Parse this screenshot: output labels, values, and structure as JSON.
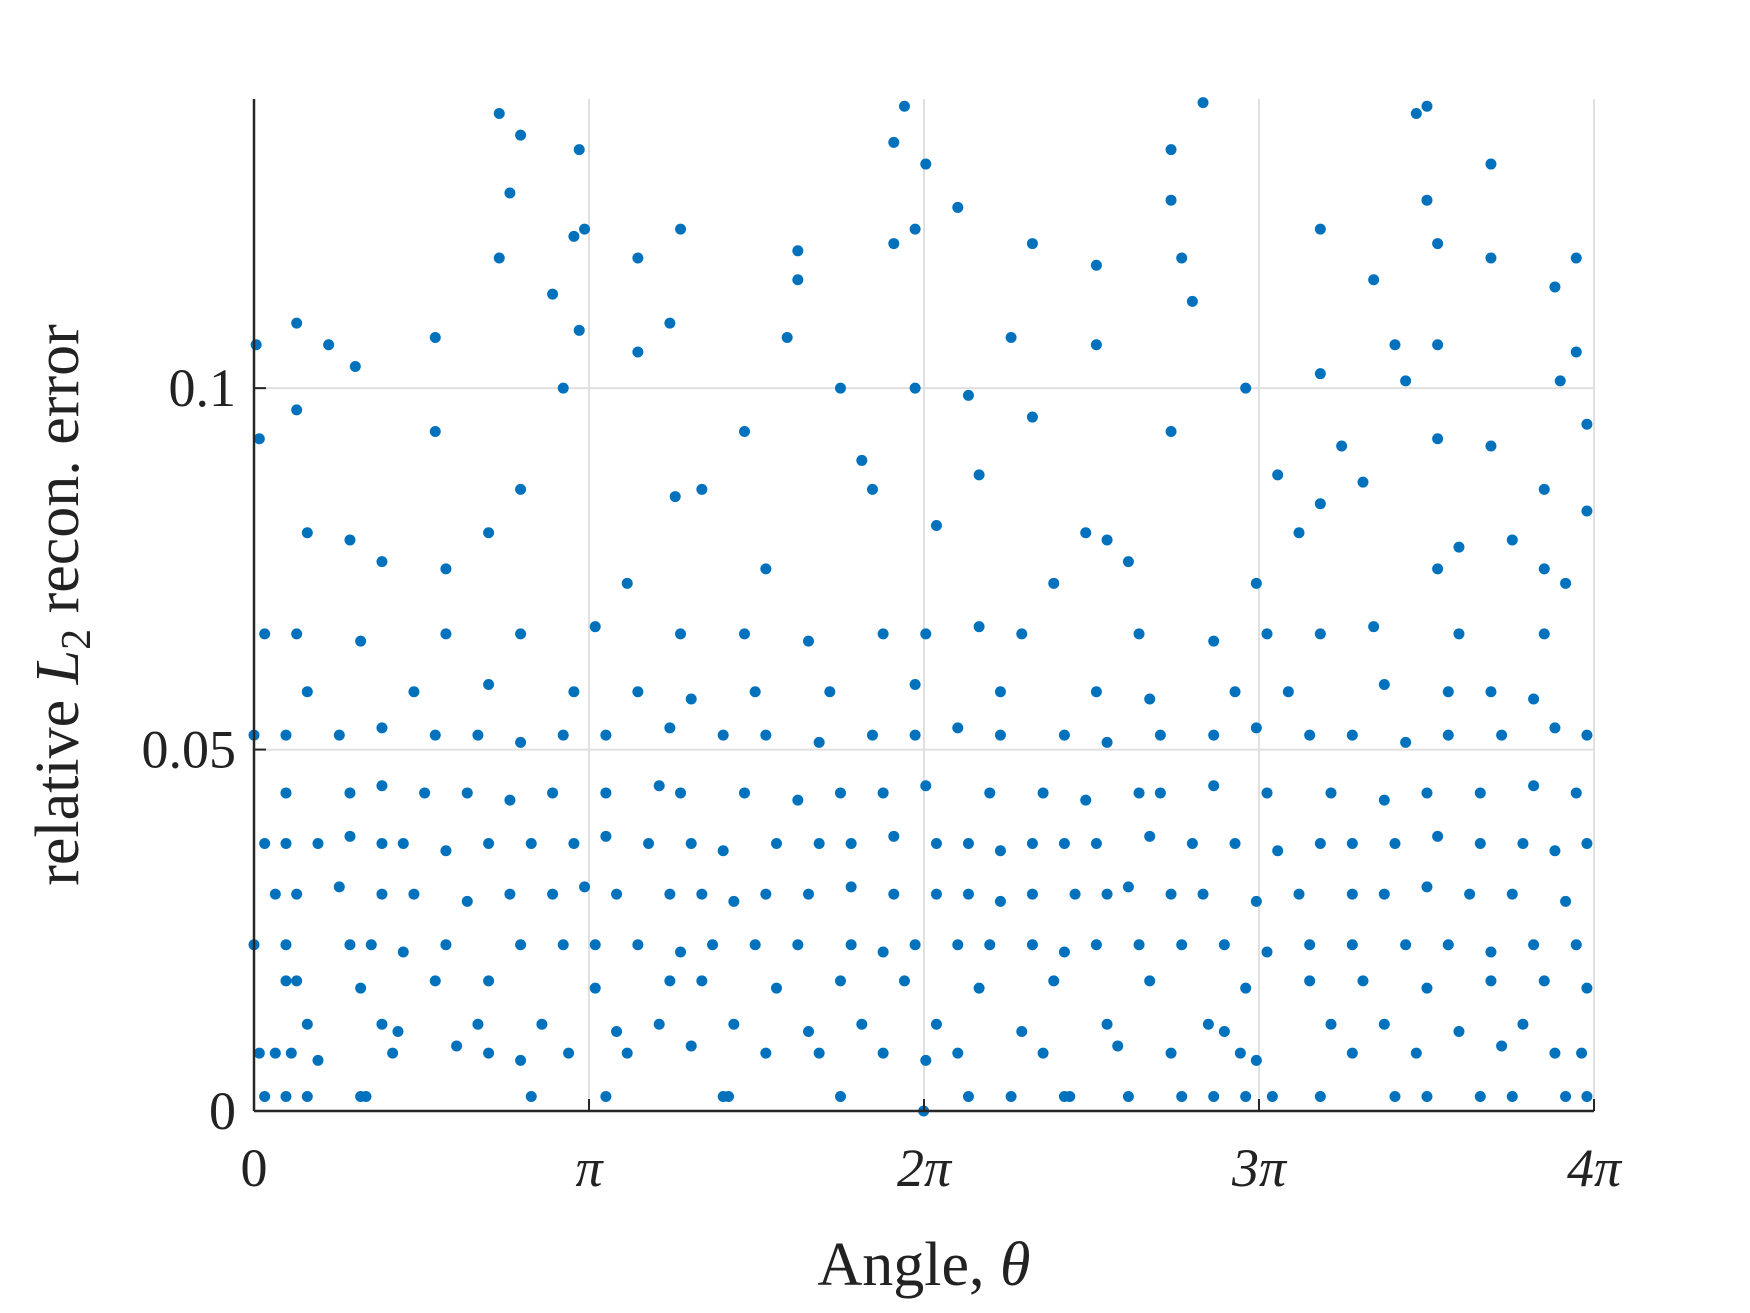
{
  "chart_data": {
    "type": "scatter",
    "xlabel": [
      "Angle, ",
      "θ"
    ],
    "ylabel": [
      "relative ",
      "L",
      "2",
      " recon. error"
    ],
    "xlim": [
      0,
      12.5664
    ],
    "ylim": [
      0,
      0.14
    ],
    "xticks": [
      0,
      {
        "value": 3.1416,
        "label": "π"
      },
      {
        "value": 6.2832,
        "label": "2π"
      },
      {
        "value": 9.4248,
        "label": "3π"
      },
      {
        "value": 12.5664,
        "label": "4π"
      }
    ],
    "yticks": [
      0,
      0.05,
      0.1
    ],
    "grid": true,
    "color": "#0072bd",
    "points": [
      [
        0.1,
        0.002
      ],
      [
        0.3,
        0.002
      ],
      [
        0.5,
        0.002
      ],
      [
        1.0,
        0.002
      ],
      [
        1.05,
        0.002
      ],
      [
        2.6,
        0.002
      ],
      [
        3.3,
        0.002
      ],
      [
        4.4,
        0.002
      ],
      [
        4.45,
        0.002
      ],
      [
        5.5,
        0.002
      ],
      [
        6.7,
        0.002
      ],
      [
        7.1,
        0.002
      ],
      [
        7.6,
        0.002
      ],
      [
        7.65,
        0.002
      ],
      [
        8.2,
        0.002
      ],
      [
        8.7,
        0.002
      ],
      [
        9.0,
        0.002
      ],
      [
        9.3,
        0.002
      ],
      [
        9.55,
        0.002
      ],
      [
        10.0,
        0.002
      ],
      [
        10.7,
        0.002
      ],
      [
        11.0,
        0.002
      ],
      [
        11.5,
        0.002
      ],
      [
        11.8,
        0.002
      ],
      [
        12.3,
        0.002
      ],
      [
        12.5,
        0.002
      ],
      [
        6.28,
        0.0
      ],
      [
        0.05,
        0.008
      ],
      [
        0.2,
        0.008
      ],
      [
        0.35,
        0.008
      ],
      [
        0.6,
        0.007
      ],
      [
        1.3,
        0.008
      ],
      [
        1.9,
        0.009
      ],
      [
        2.2,
        0.008
      ],
      [
        2.5,
        0.007
      ],
      [
        2.95,
        0.008
      ],
      [
        3.5,
        0.008
      ],
      [
        4.1,
        0.009
      ],
      [
        4.8,
        0.008
      ],
      [
        5.3,
        0.008
      ],
      [
        5.9,
        0.008
      ],
      [
        6.3,
        0.007
      ],
      [
        6.6,
        0.008
      ],
      [
        7.4,
        0.008
      ],
      [
        8.1,
        0.009
      ],
      [
        8.6,
        0.008
      ],
      [
        9.25,
        0.008
      ],
      [
        9.4,
        0.007
      ],
      [
        10.3,
        0.008
      ],
      [
        10.9,
        0.008
      ],
      [
        11.7,
        0.009
      ],
      [
        12.2,
        0.008
      ],
      [
        12.45,
        0.008
      ],
      [
        0.5,
        0.012
      ],
      [
        1.2,
        0.012
      ],
      [
        1.35,
        0.011
      ],
      [
        2.1,
        0.012
      ],
      [
        2.7,
        0.012
      ],
      [
        3.4,
        0.011
      ],
      [
        3.8,
        0.012
      ],
      [
        4.5,
        0.012
      ],
      [
        5.2,
        0.011
      ],
      [
        5.7,
        0.012
      ],
      [
        6.4,
        0.012
      ],
      [
        7.2,
        0.011
      ],
      [
        8.0,
        0.012
      ],
      [
        8.95,
        0.012
      ],
      [
        9.1,
        0.011
      ],
      [
        10.1,
        0.012
      ],
      [
        10.6,
        0.012
      ],
      [
        11.3,
        0.011
      ],
      [
        11.9,
        0.012
      ],
      [
        0.3,
        0.018
      ],
      [
        0.4,
        0.018
      ],
      [
        1.0,
        0.017
      ],
      [
        1.7,
        0.018
      ],
      [
        2.2,
        0.018
      ],
      [
        3.2,
        0.017
      ],
      [
        3.9,
        0.018
      ],
      [
        4.2,
        0.018
      ],
      [
        4.9,
        0.017
      ],
      [
        5.5,
        0.018
      ],
      [
        6.1,
        0.018
      ],
      [
        6.8,
        0.017
      ],
      [
        7.5,
        0.018
      ],
      [
        8.4,
        0.018
      ],
      [
        9.3,
        0.017
      ],
      [
        9.9,
        0.018
      ],
      [
        10.4,
        0.018
      ],
      [
        11.0,
        0.017
      ],
      [
        11.6,
        0.018
      ],
      [
        12.1,
        0.018
      ],
      [
        12.5,
        0.017
      ],
      [
        0.0,
        0.023
      ],
      [
        0.3,
        0.023
      ],
      [
        0.9,
        0.023
      ],
      [
        1.1,
        0.023
      ],
      [
        1.4,
        0.022
      ],
      [
        1.8,
        0.023
      ],
      [
        2.5,
        0.023
      ],
      [
        2.9,
        0.023
      ],
      [
        3.2,
        0.023
      ],
      [
        3.6,
        0.023
      ],
      [
        4.0,
        0.022
      ],
      [
        4.3,
        0.023
      ],
      [
        4.7,
        0.023
      ],
      [
        5.1,
        0.023
      ],
      [
        5.6,
        0.023
      ],
      [
        5.9,
        0.022
      ],
      [
        6.2,
        0.023
      ],
      [
        6.6,
        0.023
      ],
      [
        6.9,
        0.023
      ],
      [
        7.3,
        0.023
      ],
      [
        7.6,
        0.022
      ],
      [
        7.9,
        0.023
      ],
      [
        8.3,
        0.023
      ],
      [
        8.7,
        0.023
      ],
      [
        9.1,
        0.023
      ],
      [
        9.5,
        0.022
      ],
      [
        9.9,
        0.023
      ],
      [
        10.3,
        0.023
      ],
      [
        10.8,
        0.023
      ],
      [
        11.2,
        0.023
      ],
      [
        11.6,
        0.022
      ],
      [
        12.0,
        0.023
      ],
      [
        12.4,
        0.023
      ],
      [
        0.2,
        0.03
      ],
      [
        0.4,
        0.03
      ],
      [
        0.8,
        0.031
      ],
      [
        1.2,
        0.03
      ],
      [
        1.5,
        0.03
      ],
      [
        2.0,
        0.029
      ],
      [
        2.4,
        0.03
      ],
      [
        2.8,
        0.03
      ],
      [
        3.1,
        0.031
      ],
      [
        3.4,
        0.03
      ],
      [
        3.9,
        0.03
      ],
      [
        4.2,
        0.03
      ],
      [
        4.5,
        0.029
      ],
      [
        4.8,
        0.03
      ],
      [
        5.2,
        0.03
      ],
      [
        5.6,
        0.031
      ],
      [
        6.0,
        0.03
      ],
      [
        6.4,
        0.03
      ],
      [
        6.7,
        0.03
      ],
      [
        7.0,
        0.029
      ],
      [
        7.3,
        0.03
      ],
      [
        7.7,
        0.03
      ],
      [
        8.0,
        0.03
      ],
      [
        8.2,
        0.031
      ],
      [
        8.6,
        0.03
      ],
      [
        8.9,
        0.03
      ],
      [
        9.4,
        0.029
      ],
      [
        9.8,
        0.03
      ],
      [
        10.3,
        0.03
      ],
      [
        10.6,
        0.03
      ],
      [
        11.0,
        0.031
      ],
      [
        11.4,
        0.03
      ],
      [
        11.8,
        0.03
      ],
      [
        12.3,
        0.029
      ],
      [
        0.1,
        0.037
      ],
      [
        0.3,
        0.037
      ],
      [
        0.6,
        0.037
      ],
      [
        0.9,
        0.038
      ],
      [
        1.2,
        0.037
      ],
      [
        1.4,
        0.037
      ],
      [
        1.8,
        0.036
      ],
      [
        2.2,
        0.037
      ],
      [
        2.6,
        0.037
      ],
      [
        3.0,
        0.037
      ],
      [
        3.3,
        0.038
      ],
      [
        3.7,
        0.037
      ],
      [
        4.1,
        0.037
      ],
      [
        4.4,
        0.036
      ],
      [
        4.9,
        0.037
      ],
      [
        5.3,
        0.037
      ],
      [
        5.6,
        0.037
      ],
      [
        6.0,
        0.038
      ],
      [
        6.4,
        0.037
      ],
      [
        6.7,
        0.037
      ],
      [
        7.0,
        0.036
      ],
      [
        7.3,
        0.037
      ],
      [
        7.6,
        0.037
      ],
      [
        7.9,
        0.037
      ],
      [
        8.4,
        0.038
      ],
      [
        8.8,
        0.037
      ],
      [
        9.2,
        0.037
      ],
      [
        9.6,
        0.036
      ],
      [
        10.0,
        0.037
      ],
      [
        10.3,
        0.037
      ],
      [
        10.7,
        0.037
      ],
      [
        11.1,
        0.038
      ],
      [
        11.5,
        0.037
      ],
      [
        11.9,
        0.037
      ],
      [
        12.2,
        0.036
      ],
      [
        12.5,
        0.037
      ],
      [
        0.3,
        0.044
      ],
      [
        0.9,
        0.044
      ],
      [
        1.2,
        0.045
      ],
      [
        1.6,
        0.044
      ],
      [
        2.0,
        0.044
      ],
      [
        2.4,
        0.043
      ],
      [
        2.8,
        0.044
      ],
      [
        3.3,
        0.044
      ],
      [
        3.8,
        0.045
      ],
      [
        4.0,
        0.044
      ],
      [
        4.6,
        0.044
      ],
      [
        5.1,
        0.043
      ],
      [
        5.5,
        0.044
      ],
      [
        5.9,
        0.044
      ],
      [
        6.3,
        0.045
      ],
      [
        6.9,
        0.044
      ],
      [
        7.4,
        0.044
      ],
      [
        7.8,
        0.043
      ],
      [
        8.3,
        0.044
      ],
      [
        8.5,
        0.044
      ],
      [
        9.0,
        0.045
      ],
      [
        9.5,
        0.044
      ],
      [
        10.1,
        0.044
      ],
      [
        10.6,
        0.043
      ],
      [
        11.0,
        0.044
      ],
      [
        11.5,
        0.044
      ],
      [
        12.0,
        0.045
      ],
      [
        12.4,
        0.044
      ],
      [
        0.0,
        0.052
      ],
      [
        0.3,
        0.052
      ],
      [
        0.8,
        0.052
      ],
      [
        1.2,
        0.053
      ],
      [
        1.7,
        0.052
      ],
      [
        2.1,
        0.052
      ],
      [
        2.5,
        0.051
      ],
      [
        2.9,
        0.052
      ],
      [
        3.3,
        0.052
      ],
      [
        3.9,
        0.053
      ],
      [
        4.4,
        0.052
      ],
      [
        4.8,
        0.052
      ],
      [
        5.3,
        0.051
      ],
      [
        5.8,
        0.052
      ],
      [
        6.2,
        0.052
      ],
      [
        6.6,
        0.053
      ],
      [
        7.0,
        0.052
      ],
      [
        7.6,
        0.052
      ],
      [
        8.0,
        0.051
      ],
      [
        8.5,
        0.052
      ],
      [
        9.0,
        0.052
      ],
      [
        9.4,
        0.053
      ],
      [
        9.9,
        0.052
      ],
      [
        10.3,
        0.052
      ],
      [
        10.8,
        0.051
      ],
      [
        11.2,
        0.052
      ],
      [
        11.7,
        0.052
      ],
      [
        12.2,
        0.053
      ],
      [
        12.5,
        0.052
      ],
      [
        0.5,
        0.058
      ],
      [
        1.5,
        0.058
      ],
      [
        2.2,
        0.059
      ],
      [
        3.0,
        0.058
      ],
      [
        3.6,
        0.058
      ],
      [
        4.1,
        0.057
      ],
      [
        4.7,
        0.058
      ],
      [
        5.4,
        0.058
      ],
      [
        6.2,
        0.059
      ],
      [
        7.0,
        0.058
      ],
      [
        7.9,
        0.058
      ],
      [
        8.4,
        0.057
      ],
      [
        9.2,
        0.058
      ],
      [
        9.7,
        0.058
      ],
      [
        10.6,
        0.059
      ],
      [
        11.2,
        0.058
      ],
      [
        11.6,
        0.058
      ],
      [
        12.0,
        0.057
      ],
      [
        0.1,
        0.066
      ],
      [
        0.4,
        0.066
      ],
      [
        1.0,
        0.065
      ],
      [
        1.8,
        0.066
      ],
      [
        2.5,
        0.066
      ],
      [
        3.2,
        0.067
      ],
      [
        4.0,
        0.066
      ],
      [
        4.6,
        0.066
      ],
      [
        5.2,
        0.065
      ],
      [
        5.9,
        0.066
      ],
      [
        6.3,
        0.066
      ],
      [
        6.8,
        0.067
      ],
      [
        7.2,
        0.066
      ],
      [
        8.3,
        0.066
      ],
      [
        9.0,
        0.065
      ],
      [
        9.5,
        0.066
      ],
      [
        10.0,
        0.066
      ],
      [
        10.5,
        0.067
      ],
      [
        11.3,
        0.066
      ],
      [
        12.1,
        0.066
      ],
      [
        0.02,
        0.106
      ],
      [
        0.05,
        0.093
      ],
      [
        0.4,
        0.109
      ],
      [
        0.4,
        0.097
      ],
      [
        0.7,
        0.106
      ],
      [
        0.95,
        0.103
      ],
      [
        1.7,
        0.107
      ],
      [
        1.7,
        0.094
      ],
      [
        2.3,
        0.138
      ],
      [
        2.4,
        0.127
      ],
      [
        2.5,
        0.135
      ],
      [
        2.3,
        0.118
      ],
      [
        2.8,
        0.113
      ],
      [
        2.9,
        0.1
      ],
      [
        3.05,
        0.133
      ],
      [
        3.0,
        0.121
      ],
      [
        3.1,
        0.122
      ],
      [
        3.05,
        0.108
      ],
      [
        3.6,
        0.118
      ],
      [
        3.6,
        0.105
      ],
      [
        4.0,
        0.122
      ],
      [
        3.9,
        0.109
      ],
      [
        4.6,
        0.094
      ],
      [
        5.0,
        0.107
      ],
      [
        5.1,
        0.115
      ],
      [
        5.1,
        0.119
      ],
      [
        5.5,
        0.1
      ],
      [
        5.8,
        0.086
      ],
      [
        6.0,
        0.134
      ],
      [
        6.0,
        0.12
      ],
      [
        6.1,
        0.139
      ],
      [
        6.2,
        0.122
      ],
      [
        6.2,
        0.1
      ],
      [
        6.3,
        0.131
      ],
      [
        6.4,
        0.081
      ],
      [
        6.6,
        0.125
      ],
      [
        6.7,
        0.099
      ],
      [
        7.1,
        0.107
      ],
      [
        7.3,
        0.12
      ],
      [
        7.3,
        0.096
      ],
      [
        7.9,
        0.117
      ],
      [
        7.9,
        0.106
      ],
      [
        8.0,
        0.079
      ],
      [
        8.6,
        0.133
      ],
      [
        8.6,
        0.126
      ],
      [
        8.7,
        0.118
      ],
      [
        8.8,
        0.112
      ],
      [
        8.9,
        0.1395
      ],
      [
        8.6,
        0.094
      ],
      [
        9.3,
        0.1
      ],
      [
        9.6,
        0.088
      ],
      [
        10.0,
        0.122
      ],
      [
        10.0,
        0.102
      ],
      [
        10.2,
        0.092
      ],
      [
        10.5,
        0.115
      ],
      [
        10.7,
        0.106
      ],
      [
        10.8,
        0.101
      ],
      [
        10.9,
        0.138
      ],
      [
        11.0,
        0.139
      ],
      [
        11.0,
        0.126
      ],
      [
        11.1,
        0.12
      ],
      [
        11.1,
        0.106
      ],
      [
        11.1,
        0.093
      ],
      [
        11.6,
        0.131
      ],
      [
        11.6,
        0.118
      ],
      [
        11.6,
        0.092
      ],
      [
        12.2,
        0.114
      ],
      [
        12.25,
        0.101
      ],
      [
        12.4,
        0.105
      ],
      [
        12.4,
        0.118
      ],
      [
        12.1,
        0.086
      ],
      [
        12.5,
        0.095
      ],
      [
        12.5,
        0.083
      ],
      [
        3.95,
        0.085
      ],
      [
        4.2,
        0.086
      ],
      [
        5.7,
        0.09
      ],
      [
        6.8,
        0.088
      ],
      [
        7.8,
        0.08
      ],
      [
        8.2,
        0.076
      ],
      [
        9.4,
        0.073
      ],
      [
        10.0,
        0.084
      ],
      [
        10.4,
        0.087
      ],
      [
        11.3,
        0.078
      ],
      [
        11.8,
        0.079
      ],
      [
        12.1,
        0.075
      ],
      [
        2.2,
        0.08
      ],
      [
        1.2,
        0.076
      ],
      [
        0.5,
        0.08
      ],
      [
        0.9,
        0.079
      ],
      [
        1.8,
        0.075
      ],
      [
        2.5,
        0.086
      ],
      [
        3.5,
        0.073
      ],
      [
        4.8,
        0.075
      ],
      [
        7.5,
        0.073
      ],
      [
        9.8,
        0.08
      ],
      [
        11.1,
        0.075
      ],
      [
        12.3,
        0.073
      ]
    ]
  }
}
